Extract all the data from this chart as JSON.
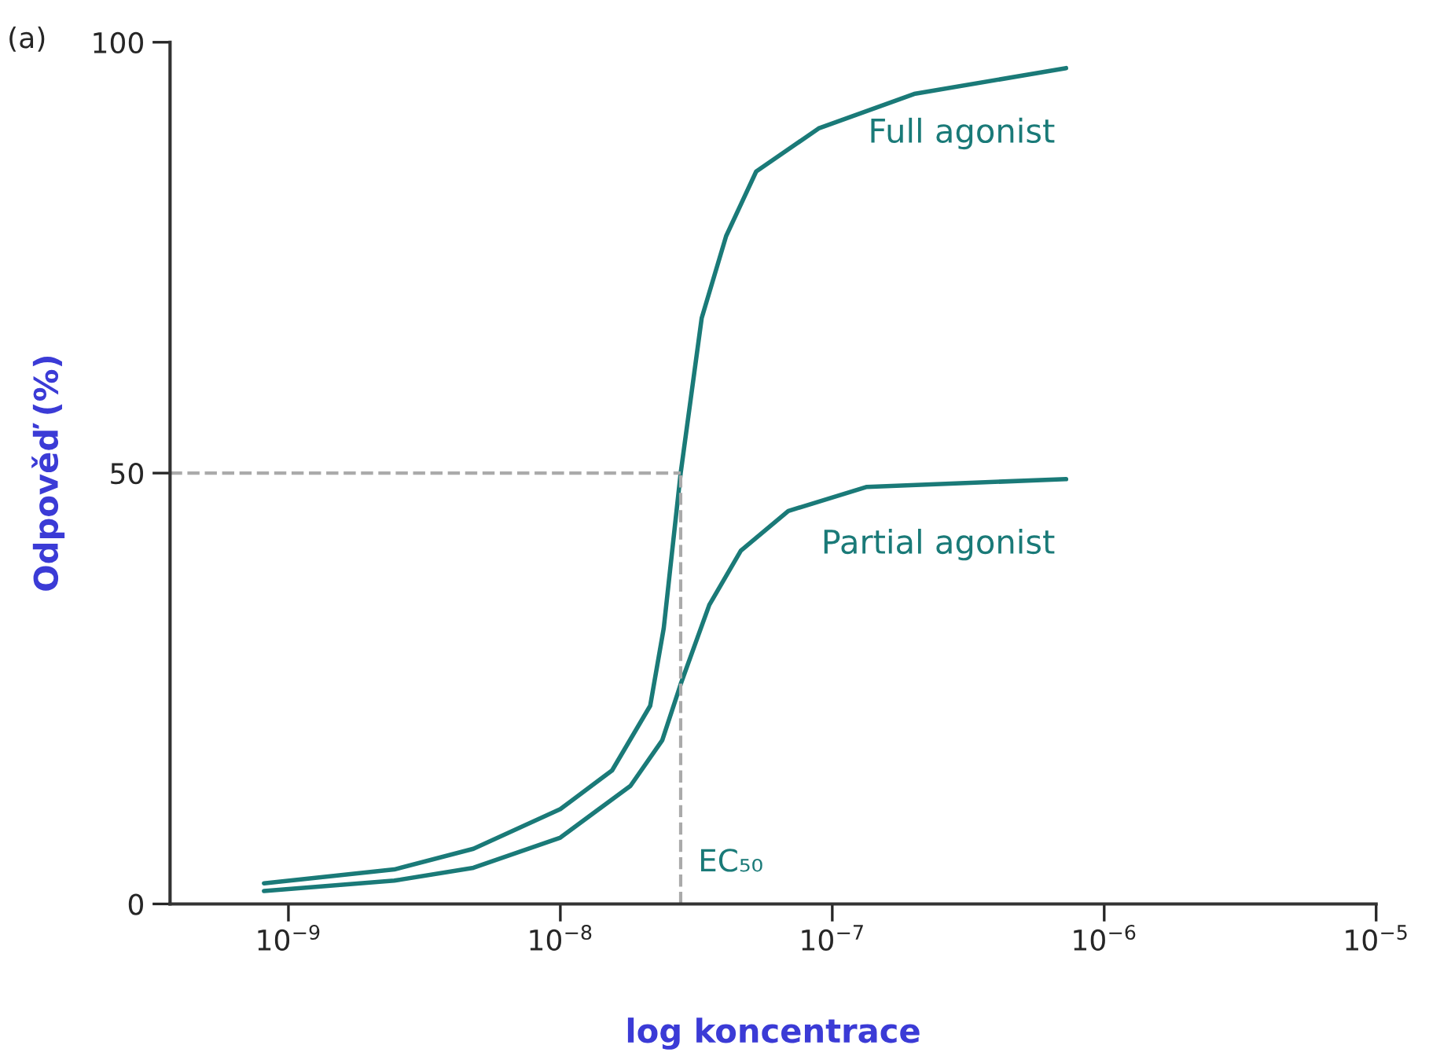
{
  "chart_data": {
    "type": "line",
    "xlabel": "log koncentrace",
    "ylabel": "Odpověď (%)",
    "log": "x",
    "xlim": [
      3.67e-10,
      1e-05
    ],
    "ylim": [
      0,
      100
    ],
    "yticks": [
      0,
      50,
      100
    ],
    "xticks": [
      {
        "value": 1e-09,
        "label": "10$^{−9}$"
      },
      {
        "value": 1e-08,
        "label": "10$^{−8}$"
      },
      {
        "value": 1e-07,
        "label": "10$^{−7}$"
      },
      {
        "value": 1e-06,
        "label": "10$^{−6}$"
      },
      {
        "value": 1e-05,
        "label": "10$^{−5}$"
      }
    ],
    "grid": false,
    "legend": false,
    "marker": "none",
    "line_style": "solid",
    "series": [
      {
        "name": "Full agonist",
        "color": "#1a7a78",
        "x": [
          8.13e-10,
          2.45e-09,
          4.79e-09,
          1e-08,
          1.55e-08,
          2.14e-08,
          2.4e-08,
          2.77e-08,
          3.31e-08,
          4.07e-08,
          5.25e-08,
          8.91e-08,
          2e-07,
          7.24e-07
        ],
        "values": [
          2.4,
          4.0,
          6.4,
          11,
          15.5,
          23,
          32,
          50,
          68,
          77.5,
          85,
          90,
          94,
          97
        ]
      },
      {
        "name": "Partial agonist",
        "color": "#1a7a78",
        "x": [
          8.13e-10,
          2.45e-09,
          4.79e-09,
          1e-08,
          1.81e-08,
          2.37e-08,
          2.77e-08,
          3.53e-08,
          4.61e-08,
          6.89e-08,
          1.34e-07,
          7.24e-07
        ],
        "values": [
          1.5,
          2.7,
          4.2,
          7.7,
          13.7,
          19,
          25.5,
          34.7,
          41,
          45.6,
          48.4,
          49.3
        ]
      }
    ],
    "ref_lines": [
      {
        "axis": "x",
        "value": 2.77e-08,
        "label": "EC₅₀",
        "color": "#aaaaaa",
        "line_style": "dashed"
      },
      {
        "axis": "y",
        "value": 50,
        "color": "#aaaaaa",
        "line_style": "dashed"
      }
    ],
    "annotations": [
      "(a)"
    ]
  }
}
